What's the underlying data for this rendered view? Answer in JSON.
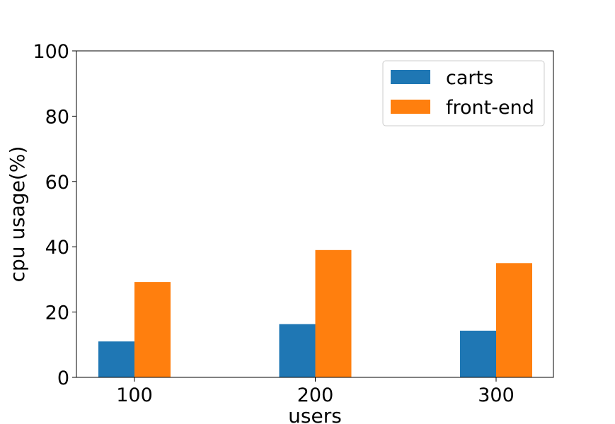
{
  "chart_data": {
    "type": "bar",
    "title": "",
    "xlabel": "users",
    "ylabel": "cpu usage(%)",
    "categories": [
      "100",
      "200",
      "300"
    ],
    "ylim": [
      0,
      100
    ],
    "yticks": [
      0,
      20,
      40,
      60,
      80,
      100
    ],
    "grid": false,
    "legend_position": "top-right",
    "series": [
      {
        "name": "carts",
        "color": "#1f77b4",
        "values": [
          11.0,
          16.3,
          14.3
        ]
      },
      {
        "name": "front-end",
        "color": "#ff7f0e",
        "values": [
          29.2,
          39.0,
          35.0
        ]
      }
    ]
  }
}
